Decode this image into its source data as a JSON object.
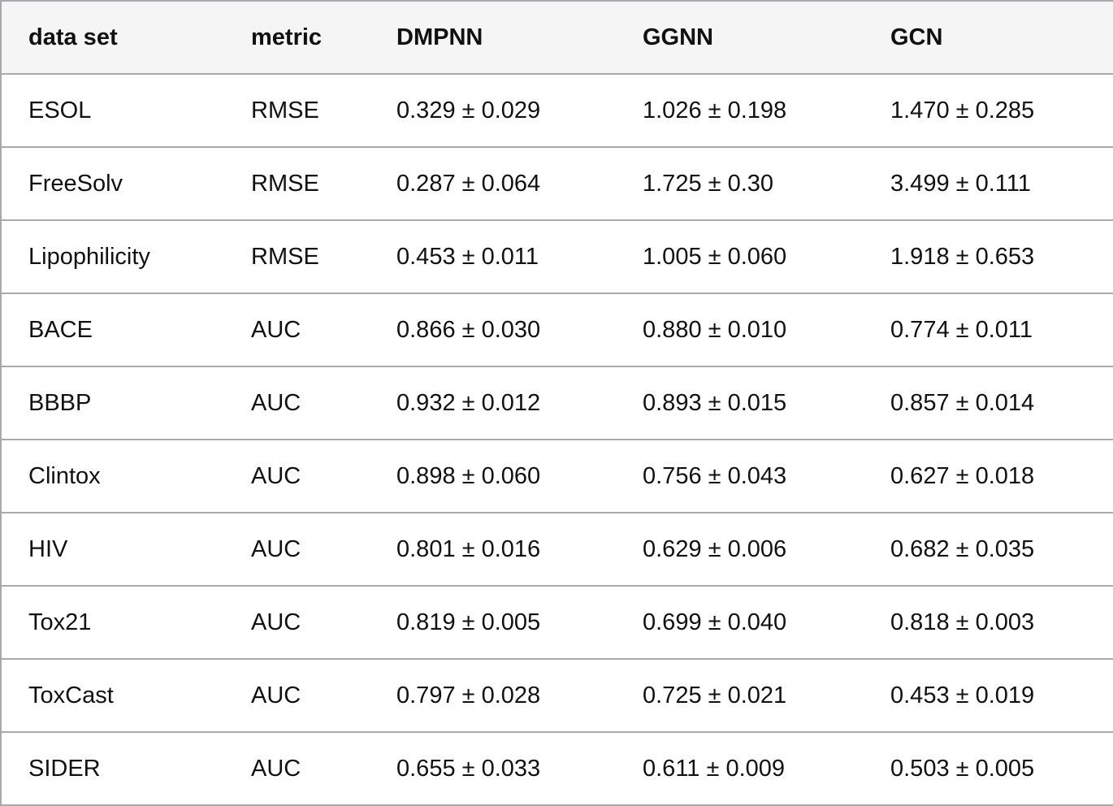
{
  "table": {
    "columns": [
      "data set",
      "metric",
      "DMPNN",
      "GGNN",
      "GCN"
    ],
    "rows": [
      [
        "ESOL",
        "RMSE",
        "0.329 ± 0.029",
        "1.026 ± 0.198",
        "1.470 ± 0.285"
      ],
      [
        "FreeSolv",
        "RMSE",
        "0.287 ± 0.064",
        "1.725 ± 0.30",
        "3.499 ± 0.111"
      ],
      [
        "Lipophilicity",
        "RMSE",
        "0.453 ± 0.011",
        "1.005 ± 0.060",
        "1.918 ± 0.653"
      ],
      [
        "BACE",
        "AUC",
        "0.866 ± 0.030",
        "0.880 ± 0.010",
        "0.774 ± 0.011"
      ],
      [
        "BBBP",
        "AUC",
        "0.932 ± 0.012",
        "0.893 ± 0.015",
        "0.857 ± 0.014"
      ],
      [
        "Clintox",
        "AUC",
        "0.898 ± 0.060",
        "0.756 ± 0.043",
        "0.627 ± 0.018"
      ],
      [
        "HIV",
        "AUC",
        "0.801 ± 0.016",
        "0.629 ± 0.006",
        "0.682 ± 0.035"
      ],
      [
        "Tox21",
        "AUC",
        "0.819 ± 0.005",
        "0.699 ± 0.040",
        "0.818 ± 0.003"
      ],
      [
        "ToxCast",
        "AUC",
        "0.797 ± 0.028",
        "0.725 ± 0.021",
        "0.453 ± 0.019"
      ],
      [
        "SIDER",
        "AUC",
        "0.655 ± 0.033",
        "0.611 ± 0.009",
        "0.503 ± 0.005"
      ]
    ]
  },
  "colors": {
    "header_bg": "#f5f5f6",
    "row_bg": "#ffffff",
    "border": "#a9a9ad",
    "text": "#111111"
  },
  "chart_data": {
    "type": "table",
    "title": "",
    "columns": [
      "data set",
      "metric",
      "DMPNN",
      "GGNN",
      "GCN"
    ],
    "rows": [
      {
        "dataset": "ESOL",
        "metric": "RMSE",
        "DMPNN": 0.329,
        "DMPNN_std": 0.029,
        "GGNN": 1.026,
        "GGNN_std": 0.198,
        "GCN": 1.47,
        "GCN_std": 0.285
      },
      {
        "dataset": "FreeSolv",
        "metric": "RMSE",
        "DMPNN": 0.287,
        "DMPNN_std": 0.064,
        "GGNN": 1.725,
        "GGNN_std": 0.3,
        "GCN": 3.499,
        "GCN_std": 0.111
      },
      {
        "dataset": "Lipophilicity",
        "metric": "RMSE",
        "DMPNN": 0.453,
        "DMPNN_std": 0.011,
        "GGNN": 1.005,
        "GGNN_std": 0.06,
        "GCN": 1.918,
        "GCN_std": 0.653
      },
      {
        "dataset": "BACE",
        "metric": "AUC",
        "DMPNN": 0.866,
        "DMPNN_std": 0.03,
        "GGNN": 0.88,
        "GGNN_std": 0.01,
        "GCN": 0.774,
        "GCN_std": 0.011
      },
      {
        "dataset": "BBBP",
        "metric": "AUC",
        "DMPNN": 0.932,
        "DMPNN_std": 0.012,
        "GGNN": 0.893,
        "GGNN_std": 0.015,
        "GCN": 0.857,
        "GCN_std": 0.014
      },
      {
        "dataset": "Clintox",
        "metric": "AUC",
        "DMPNN": 0.898,
        "DMPNN_std": 0.06,
        "GGNN": 0.756,
        "GGNN_std": 0.043,
        "GCN": 0.627,
        "GCN_std": 0.018
      },
      {
        "dataset": "HIV",
        "metric": "AUC",
        "DMPNN": 0.801,
        "DMPNN_std": 0.016,
        "GGNN": 0.629,
        "GGNN_std": 0.006,
        "GCN": 0.682,
        "GCN_std": 0.035
      },
      {
        "dataset": "Tox21",
        "metric": "AUC",
        "DMPNN": 0.819,
        "DMPNN_std": 0.005,
        "GGNN": 0.699,
        "GGNN_std": 0.04,
        "GCN": 0.818,
        "GCN_std": 0.003
      },
      {
        "dataset": "ToxCast",
        "metric": "AUC",
        "DMPNN": 0.797,
        "DMPNN_std": 0.028,
        "GGNN": 0.725,
        "GGNN_std": 0.021,
        "GCN": 0.453,
        "GCN_std": 0.019
      },
      {
        "dataset": "SIDER",
        "metric": "AUC",
        "DMPNN": 0.655,
        "DMPNN_std": 0.033,
        "GGNN": 0.611,
        "GGNN_std": 0.009,
        "GCN": 0.503,
        "GCN_std": 0.005
      }
    ]
  }
}
